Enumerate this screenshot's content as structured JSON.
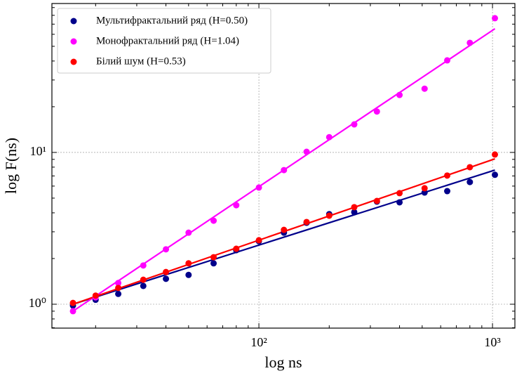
{
  "chart_data": {
    "type": "scatter",
    "xlabel": "log ns",
    "ylabel": "log F(ns)",
    "xscale": "log",
    "yscale": "log",
    "grid": true,
    "legend": "upper left",
    "xlim": [
      13.0,
      1247
    ],
    "ylim": [
      0.696,
      95.7
    ],
    "xticks": [
      {
        "value": 100,
        "label": "10²"
      },
      {
        "value": 1000,
        "label": "10³"
      }
    ],
    "yticks": [
      {
        "value": 1,
        "label": "10⁰"
      },
      {
        "value": 10,
        "label": "10¹"
      }
    ],
    "x": [
      16,
      20,
      25,
      32,
      40,
      50,
      64,
      80,
      100,
      128,
      160,
      200,
      256,
      320,
      400,
      512,
      640,
      800,
      1024
    ],
    "series": [
      {
        "name": "Мультифрактальний ряд (H=0.50)",
        "color": "#00008b",
        "values": [
          0.98,
          1.07,
          1.17,
          1.32,
          1.47,
          1.56,
          1.86,
          2.27,
          2.6,
          2.96,
          3.44,
          3.92,
          4.04,
          4.74,
          4.69,
          5.44,
          5.56,
          6.38,
          7.12
        ],
        "fit": {
          "x": [
            16,
            1024
          ],
          "values": [
            1.0,
            7.65
          ]
        }
      },
      {
        "name": "Монофрактальний ряд (H=1.04)",
        "color": "#ff00ff",
        "values": [
          0.9,
          1.11,
          1.38,
          1.8,
          2.3,
          2.96,
          3.55,
          4.49,
          5.87,
          7.65,
          10.1,
          12.6,
          15.3,
          18.6,
          23.9,
          26.3,
          40.4,
          52.7,
          76.6
        ],
        "fit": {
          "x": [
            16,
            1024
          ],
          "values": [
            0.9,
            65.3
          ]
        }
      },
      {
        "name": "Білий шум (H=0.53)",
        "color": "#ff0000",
        "values": [
          1.02,
          1.14,
          1.28,
          1.45,
          1.63,
          1.86,
          2.04,
          2.32,
          2.64,
          3.09,
          3.48,
          3.83,
          4.36,
          4.79,
          5.39,
          5.81,
          7.04,
          7.99,
          9.69
        ],
        "fit": {
          "x": [
            16,
            1024
          ],
          "values": [
            1.0,
            9.07
          ]
        }
      }
    ]
  }
}
